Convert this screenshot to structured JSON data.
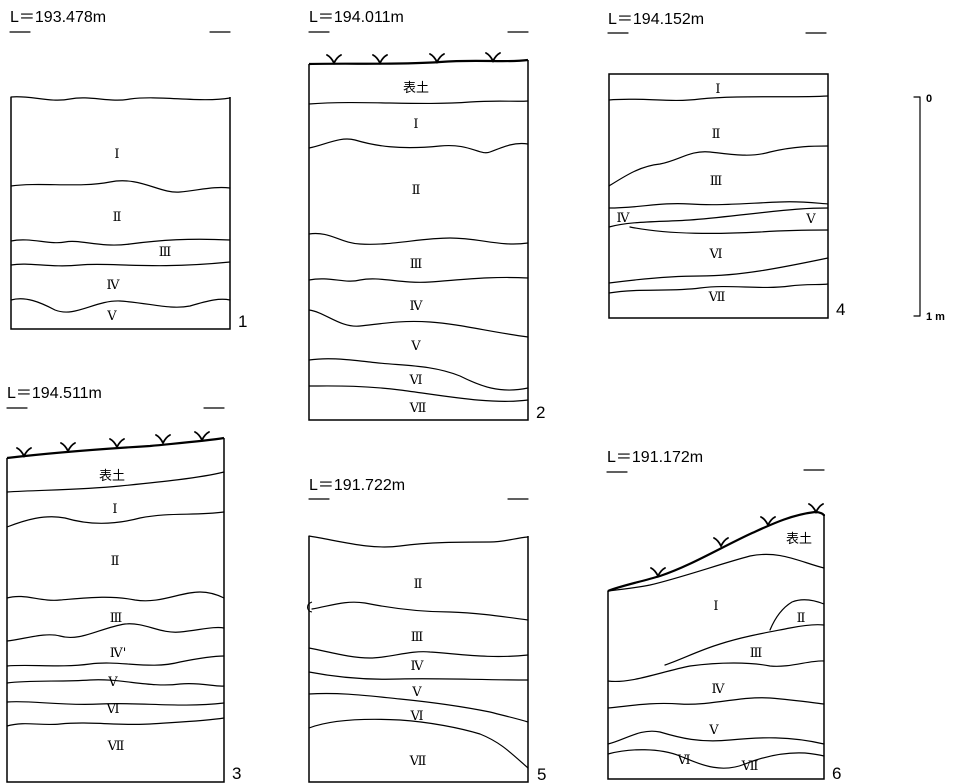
{
  "sections": [
    {
      "number": "1",
      "elevation": "L＝193.478m",
      "layers": [
        "Ⅰ",
        "Ⅱ",
        "Ⅲ",
        "Ⅳ",
        "Ⅴ"
      ]
    },
    {
      "number": "2",
      "elevation": "L＝194.011m",
      "layers": [
        "表土",
        "Ⅰ",
        "Ⅱ",
        "Ⅲ",
        "Ⅳ",
        "Ⅴ",
        "Ⅵ",
        "Ⅶ"
      ]
    },
    {
      "number": "3",
      "elevation": "L＝194.511m",
      "layers": [
        "表土",
        "Ⅰ",
        "Ⅱ",
        "Ⅲ",
        "Ⅳ'",
        "Ⅴ",
        "Ⅵ",
        "Ⅶ"
      ]
    },
    {
      "number": "4",
      "elevation": "L＝194.152m",
      "layers": [
        "Ⅰ",
        "Ⅱ",
        "Ⅲ",
        "Ⅳ",
        "Ⅴ",
        "Ⅵ",
        "Ⅶ"
      ]
    },
    {
      "number": "5",
      "elevation": "L＝191.722m",
      "layers": [
        "Ⅱ",
        "Ⅲ",
        "Ⅳ",
        "Ⅴ",
        "Ⅵ",
        "Ⅶ"
      ]
    },
    {
      "number": "6",
      "elevation": "L＝191.172m",
      "layers": [
        "表土",
        "Ⅰ",
        "Ⅱ",
        "Ⅲ",
        "Ⅳ",
        "Ⅴ",
        "Ⅵ",
        "Ⅶ"
      ]
    }
  ],
  "scale_bar": {
    "top_label": "0",
    "bottom_label": "1 m"
  }
}
